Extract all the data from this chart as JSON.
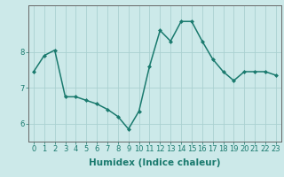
{
  "x": [
    0,
    1,
    2,
    3,
    4,
    5,
    6,
    7,
    8,
    9,
    10,
    11,
    12,
    13,
    14,
    15,
    16,
    17,
    18,
    19,
    20,
    21,
    22,
    23
  ],
  "y": [
    7.45,
    7.9,
    8.05,
    6.75,
    6.75,
    6.65,
    6.55,
    6.4,
    6.2,
    5.85,
    6.35,
    7.6,
    8.6,
    8.3,
    8.85,
    8.85,
    8.3,
    7.8,
    7.45,
    7.2,
    7.45,
    7.45,
    7.45,
    7.35
  ],
  "line_color": "#1a7a6e",
  "marker": "D",
  "marker_size": 2.0,
  "linewidth": 1.1,
  "bg_color": "#cce9e9",
  "grid_color": "#aad0d0",
  "axis_color": "#666666",
  "xlabel": "Humidex (Indice chaleur)",
  "ylim": [
    5.5,
    9.3
  ],
  "xlim": [
    -0.5,
    23.5
  ],
  "yticks": [
    6,
    7,
    8
  ],
  "xticks": [
    0,
    1,
    2,
    3,
    4,
    5,
    6,
    7,
    8,
    9,
    10,
    11,
    12,
    13,
    14,
    15,
    16,
    17,
    18,
    19,
    20,
    21,
    22,
    23
  ],
  "xlabel_fontsize": 7.5,
  "tick_fontsize": 6.0
}
